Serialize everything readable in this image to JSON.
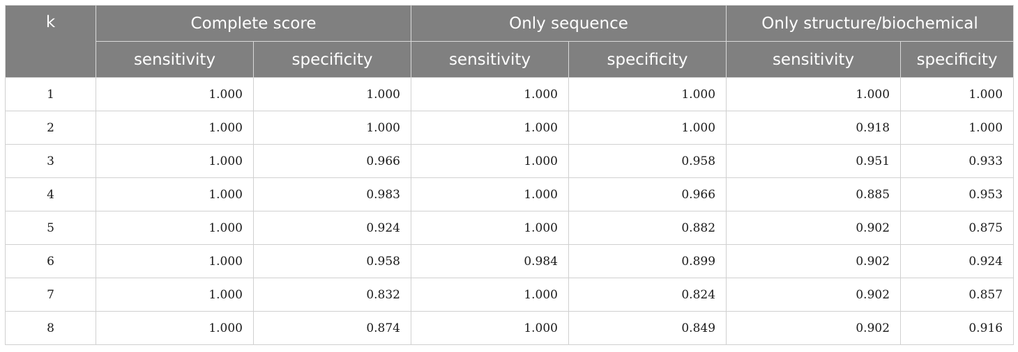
{
  "table": {
    "header": {
      "k": "k",
      "groups": [
        "Complete score",
        "Only sequence",
        "Only structure/biochemical"
      ],
      "sub": [
        "sensitivity",
        "specificity",
        "sensitivity",
        "specificity",
        "sensitivity",
        "specificity"
      ]
    },
    "rows": [
      [
        "1",
        "1.000",
        "1.000",
        "1.000",
        "1.000",
        "1.000",
        "1.000"
      ],
      [
        "2",
        "1.000",
        "1.000",
        "1.000",
        "1.000",
        "0.918",
        "1.000"
      ],
      [
        "3",
        "1.000",
        "0.966",
        "1.000",
        "0.958",
        "0.951",
        "0.933"
      ],
      [
        "4",
        "1.000",
        "0.983",
        "1.000",
        "0.966",
        "0.885",
        "0.953"
      ],
      [
        "5",
        "1.000",
        "0.924",
        "1.000",
        "0.882",
        "0.902",
        "0.875"
      ],
      [
        "6",
        "1.000",
        "0.958",
        "0.984",
        "0.899",
        "0.902",
        "0.924"
      ],
      [
        "7",
        "1.000",
        "0.832",
        "1.000",
        "0.824",
        "0.902",
        "0.857"
      ],
      [
        "8",
        "1.000",
        "0.874",
        "1.000",
        "0.849",
        "0.902",
        "0.916"
      ]
    ]
  },
  "colors": {
    "header_bg": "#808080",
    "header_text": "#ffffff",
    "border": "#d0d0d0"
  }
}
